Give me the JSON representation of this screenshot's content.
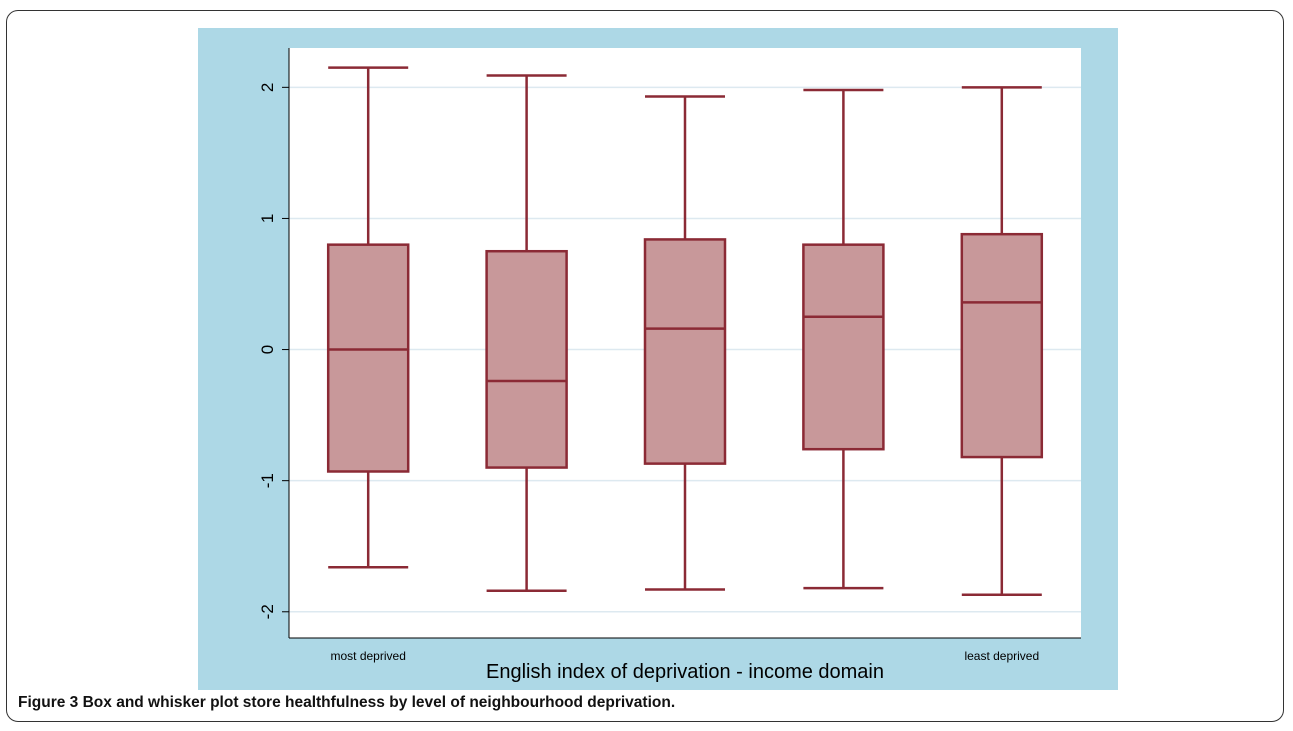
{
  "caption": {
    "text": "Figure 3 Box and whisker plot store healthfulness by level of neighbourhood deprivation."
  },
  "colors": {
    "outer_background": "#add8e6",
    "plot_background": "#ffffff",
    "box_fill": "#c8989a",
    "box_stroke": "#8b2a35",
    "gridline": "#dde9f0"
  },
  "chart_data": {
    "type": "box",
    "title": "",
    "xlabel": "English index of deprivation - income domain",
    "ylabel": "",
    "ylim": [
      -2.2,
      2.3
    ],
    "yticks": [
      -2,
      -1,
      0,
      1,
      2
    ],
    "ytick_labels": [
      "-2",
      "-1",
      "0",
      "1",
      "2"
    ],
    "grid": true,
    "legend": "none",
    "x_category_labels": [
      "most deprived",
      "",
      "",
      "",
      "least deprived"
    ],
    "boxes": [
      {
        "whisker_low": -1.66,
        "q1": -0.93,
        "median": 0.0,
        "q3": 0.8,
        "whisker_high": 2.15
      },
      {
        "whisker_low": -1.84,
        "q1": -0.9,
        "median": -0.24,
        "q3": 0.75,
        "whisker_high": 2.09
      },
      {
        "whisker_low": -1.83,
        "q1": -0.87,
        "median": 0.16,
        "q3": 0.84,
        "whisker_high": 1.93
      },
      {
        "whisker_low": -1.82,
        "q1": -0.76,
        "median": 0.25,
        "q3": 0.8,
        "whisker_high": 1.98
      },
      {
        "whisker_low": -1.87,
        "q1": -0.82,
        "median": 0.36,
        "q3": 0.88,
        "whisker_high": 2.0
      }
    ]
  }
}
